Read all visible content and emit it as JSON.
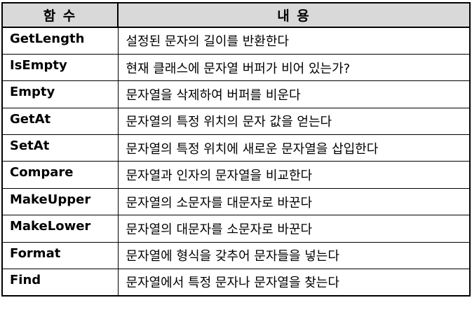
{
  "table": {
    "headers": [
      "함 수",
      "내 용"
    ],
    "rows": [
      {
        "function": "GetLength",
        "description": "설정된 문자의 길이를 반환한다"
      },
      {
        "function": "IsEmpty",
        "description": "현재 클래스에 문자열 버퍼가 비어 있는가?"
      },
      {
        "function": "Empty",
        "description": "문자열을 삭제하여 버퍼를 비운다"
      },
      {
        "function": "GetAt",
        "description": "문자열의 특정 위치의 문자 값을 얻는다"
      },
      {
        "function": "SetAt",
        "description": "문자열의 특정 위치에 새로운 문자열을 삽입한다"
      },
      {
        "function": "Compare",
        "description": "문자열과 인자의 문자열을 비교한다"
      },
      {
        "function": "MakeUpper",
        "description": "문자열의 소문자를 대문자로 바꾼다"
      },
      {
        "function": "MakeLower",
        "description": "문자열의 대문자를 소문자로 바꾼다"
      },
      {
        "function": "Format",
        "description": "문자열에 형식을 갖추어 문자들을 넣는다"
      },
      {
        "function": "Find",
        "description": "문자열에서 특정 문자나 문자열을 찾는다"
      }
    ]
  }
}
